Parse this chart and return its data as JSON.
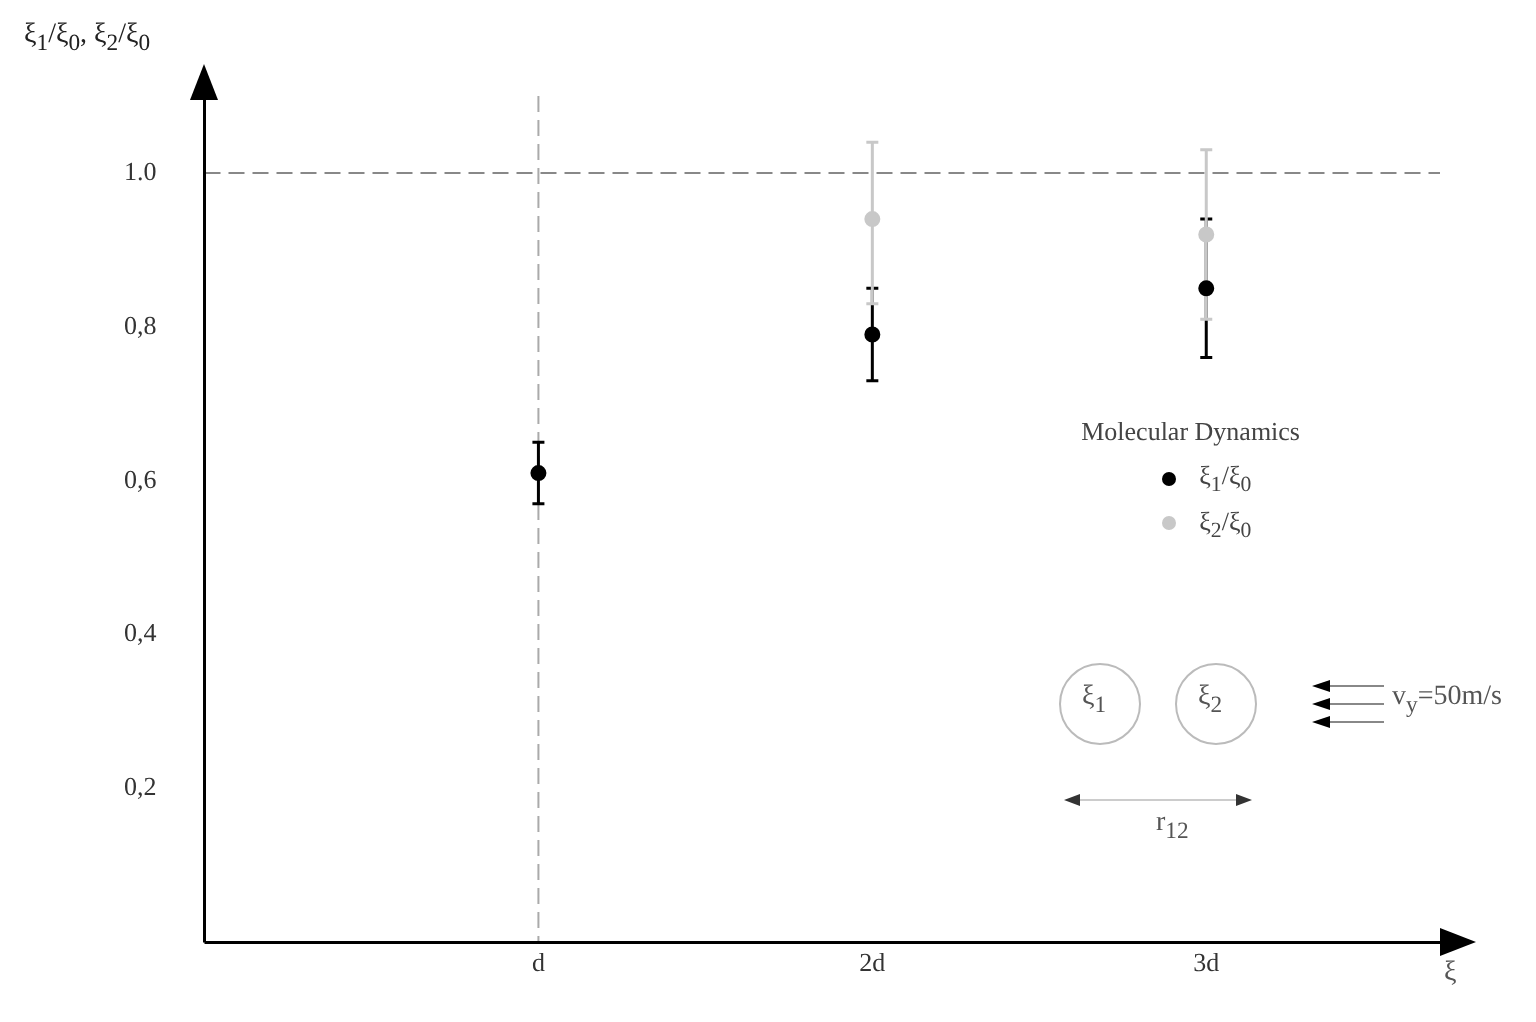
{
  "chart_data": {
    "type": "scatter",
    "ylabel": "ξ$_{1}$/ξ$_{0}$, ξ$_{2}$/ξ$_{0}$",
    "xlabel": "ξ",
    "legend_title": "Molecular Dynamics",
    "legend": "right",
    "marker": "circle",
    "xlim": [
      0,
      3.7
    ],
    "xticks": [
      {
        "value": 1,
        "label": "d"
      },
      {
        "value": 2,
        "label": "2d"
      },
      {
        "value": 3,
        "label": "3d"
      }
    ],
    "ylim": [
      0,
      1.1
    ],
    "yticks": [
      {
        "value": 0.2,
        "label": "0,2"
      },
      {
        "value": 0.4,
        "label": "0,4"
      },
      {
        "value": 0.6,
        "label": "0,6"
      },
      {
        "value": 0.8,
        "label": "0,8"
      },
      {
        "value": 1.0,
        "label": "1.0"
      }
    ],
    "series": [
      {
        "name": "ξ$_{1}$/ξ$_{0}$",
        "color": "#000000",
        "x": [
          1,
          2,
          3
        ],
        "values": [
          0.61,
          0.79,
          0.85
        ],
        "errors": [
          [
            0.57,
            0.65
          ],
          [
            0.73,
            0.85
          ],
          [
            0.76,
            0.94
          ]
        ]
      },
      {
        "name": "ξ$_{2}$/ξ$_{0}$",
        "color": "#c8c8c8",
        "x": [
          2,
          3
        ],
        "values": [
          0.94,
          0.92
        ],
        "errors": [
          [
            0.83,
            1.04
          ],
          [
            0.81,
            1.03
          ]
        ]
      }
    ],
    "ref_lines": [
      {
        "axis": "y",
        "value": 1.0,
        "line_style": "dashed",
        "color": "#888888"
      },
      {
        "axis": "x",
        "value": 1,
        "line_style": "dashed",
        "color": "#aaaaaa"
      }
    ],
    "annotations": [
      "ξ$_{1}$",
      "ξ$_{2}$",
      "v$_{y}$=50m/s",
      "r$_{12}$"
    ]
  }
}
